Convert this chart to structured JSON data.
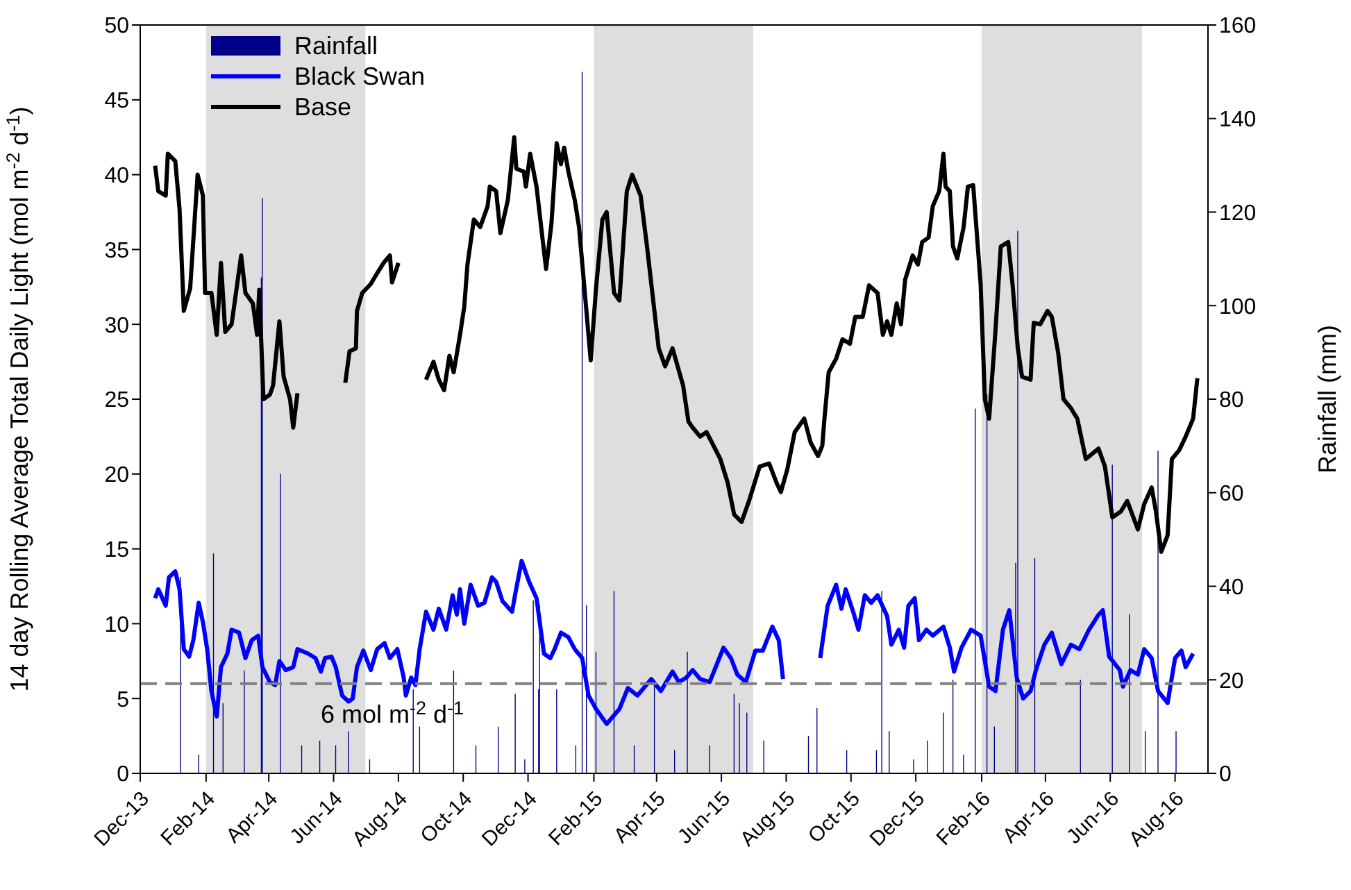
{
  "chart_data": {
    "type": "line",
    "ylabel": "14 day Rolling Average Total Daily Light (mol m$^{-2}$ d$^{-1}$)",
    "y2label": "Rainfall (mm)",
    "xlim": [
      "2013-12-01",
      "2016-09-01"
    ],
    "xticks": [
      {
        "value": "2013-12-01",
        "label": "Dec-13"
      },
      {
        "value": "2014-02-01",
        "label": "Feb-14"
      },
      {
        "value": "2014-04-01",
        "label": "Apr-14"
      },
      {
        "value": "2014-06-01",
        "label": "Jun-14"
      },
      {
        "value": "2014-08-01",
        "label": "Aug-14"
      },
      {
        "value": "2014-10-01",
        "label": "Oct-14"
      },
      {
        "value": "2014-12-01",
        "label": "Dec-14"
      },
      {
        "value": "2015-02-01",
        "label": "Feb-15"
      },
      {
        "value": "2015-04-01",
        "label": "Apr-15"
      },
      {
        "value": "2015-06-01",
        "label": "Jun-15"
      },
      {
        "value": "2015-08-01",
        "label": "Aug-15"
      },
      {
        "value": "2015-10-01",
        "label": "Oct-15"
      },
      {
        "value": "2015-12-01",
        "label": "Dec-15"
      },
      {
        "value": "2016-02-01",
        "label": "Feb-16"
      },
      {
        "value": "2016-04-01",
        "label": "Apr-16"
      },
      {
        "value": "2016-06-01",
        "label": "Jun-16"
      },
      {
        "value": "2016-08-01",
        "label": "Aug-16"
      }
    ],
    "ylim": [
      0,
      50
    ],
    "yticks": [
      0,
      5,
      10,
      15,
      20,
      25,
      30,
      35,
      40,
      45,
      50
    ],
    "y2lim": [
      0,
      160
    ],
    "y2ticks": [
      0,
      20,
      40,
      60,
      80,
      100,
      120,
      140,
      160
    ],
    "grid": false,
    "legend": "top left",
    "marker": "none",
    "series": [
      {
        "name": "Rainfall",
        "type": "bar",
        "axis": "y2",
        "color": "#00008b",
        "x": [
          "2014-01-08",
          "2014-01-25",
          "2014-02-08",
          "2014-02-17",
          "2014-03-09",
          "2014-03-25",
          "2014-03-26",
          "2014-04-12",
          "2014-05-02",
          "2014-05-19",
          "2014-06-03",
          "2014-06-15",
          "2014-07-05",
          "2014-08-15",
          "2014-08-21",
          "2014-09-22",
          "2014-10-13",
          "2014-11-03",
          "2014-11-19",
          "2014-11-28",
          "2014-12-06",
          "2014-12-11",
          "2014-12-12",
          "2014-12-28",
          "2015-01-15",
          "2015-01-21",
          "2015-01-25",
          "2015-02-03",
          "2015-02-20",
          "2015-03-11",
          "2015-03-30",
          "2015-04-18",
          "2015-04-30",
          "2015-05-21",
          "2015-06-13",
          "2015-06-18",
          "2015-06-25",
          "2015-07-11",
          "2015-08-22",
          "2015-08-30",
          "2015-09-27",
          "2015-10-25",
          "2015-10-30",
          "2015-11-06",
          "2015-11-29",
          "2015-12-12",
          "2015-12-27",
          "2016-01-05",
          "2016-01-15",
          "2016-01-26",
          "2016-02-06",
          "2016-02-13",
          "2016-03-04",
          "2016-03-06",
          "2016-03-22",
          "2016-05-04",
          "2016-06-03",
          "2016-06-19",
          "2016-07-04",
          "2016-07-16",
          "2016-08-02"
        ],
        "values": [
          42,
          4,
          47,
          15,
          22,
          106,
          123,
          64,
          6,
          7,
          6,
          9,
          3,
          18,
          10,
          22,
          6,
          10,
          17,
          3,
          37,
          18,
          36,
          18,
          6,
          150,
          36,
          26,
          39,
          6,
          19,
          5,
          26,
          6,
          17,
          15,
          13,
          7,
          8,
          14,
          5,
          5,
          39,
          9,
          3,
          7,
          13,
          20,
          4,
          78,
          81,
          10,
          45,
          116,
          46,
          20,
          66,
          34,
          9,
          69,
          9
        ]
      },
      {
        "name": "Black Swan",
        "color": "#0000ff",
        "x": [
          "2013-12-15",
          "2013-12-18",
          "2013-12-25",
          "2013-12-28",
          "2014-01-03",
          "2014-01-07",
          "2014-01-11",
          "2014-01-16",
          "2014-01-20",
          "2014-01-25",
          "2014-01-29",
          "2014-02-02",
          "2014-02-06",
          "2014-02-11",
          "2014-02-15",
          "2014-02-21",
          "2014-02-25",
          "2014-03-04",
          "2014-03-10",
          "2014-03-16",
          "2014-03-22",
          "2014-03-26",
          "2014-04-02",
          "2014-04-07",
          "2014-04-11",
          "2014-04-17",
          "2014-04-24",
          "2014-04-28",
          "2014-05-08",
          "2014-05-15",
          "2014-05-20",
          "2014-05-24",
          "2014-05-30",
          "2014-06-03",
          "2014-06-09",
          "2014-06-15",
          "2014-06-19",
          "2014-06-23",
          "2014-06-29",
          "2014-07-06",
          "2014-07-12",
          "2014-07-19",
          "2014-07-24",
          "2014-07-31",
          "2014-08-06",
          "2014-08-08",
          "2014-08-13",
          "2014-08-17",
          "2014-08-21",
          "2014-08-27",
          "2014-09-03",
          "2014-09-08",
          "2014-09-15",
          "2014-09-21",
          "2014-09-25",
          "2014-09-28",
          "2014-10-02",
          "2014-10-08",
          "2014-10-15",
          "2014-10-21",
          "2014-10-28",
          "2014-11-01",
          "2014-11-07",
          "2014-11-16",
          "2014-11-19",
          "2014-11-25",
          "2014-12-02",
          "2014-12-09",
          "2014-12-16",
          "2014-12-22",
          "2014-12-26",
          "2015-01-01",
          "2015-01-08",
          "2015-01-14",
          "2015-01-21",
          "2015-01-27",
          "2015-02-03",
          "2015-02-13",
          "2015-02-25",
          "2015-03-05",
          "2015-03-14",
          "2015-03-27",
          "2015-04-05",
          "2015-04-16",
          "2015-04-22",
          "2015-04-29",
          "2015-05-05",
          "2015-05-12",
          "2015-05-21",
          "2015-06-03",
          "2015-06-10",
          "2015-06-16",
          "2015-06-24",
          "2015-07-03",
          "2015-07-10",
          "2015-07-19",
          "2015-07-25",
          "2015-07-29",
          "2015-08-25",
          "2015-09-02",
          "2015-09-09",
          "2015-09-17",
          "2015-09-22",
          "2015-09-26",
          "2015-10-03",
          "2015-10-08",
          "2015-10-14",
          "2015-10-20",
          "2015-10-26",
          "2015-11-04",
          "2015-11-08",
          "2015-11-15",
          "2015-11-20",
          "2015-11-24",
          "2015-11-30",
          "2015-12-04",
          "2015-12-11",
          "2015-12-17",
          "2015-12-27",
          "2016-01-02",
          "2016-01-06",
          "2016-01-13",
          "2016-01-22",
          "2016-01-31",
          "2016-02-08",
          "2016-02-14",
          "2016-02-21",
          "2016-02-27",
          "2016-03-05",
          "2016-03-11",
          "2016-03-18",
          "2016-03-23",
          "2016-03-31",
          "2016-04-07",
          "2016-04-16",
          "2016-04-25",
          "2016-05-03",
          "2016-05-12",
          "2016-05-21",
          "2016-05-25",
          "2016-05-31",
          "2016-06-10",
          "2016-06-13",
          "2016-06-20",
          "2016-06-27",
          "2016-07-03",
          "2016-07-10",
          "2016-07-16",
          "2016-07-25",
          "2016-08-01",
          "2016-08-07",
          "2016-08-11",
          "2016-08-18"
        ],
        "values": [
          11.7,
          12.3,
          11.2,
          13.1,
          13.5,
          12.3,
          8.3,
          7.8,
          8.9,
          11.4,
          10.1,
          8.3,
          5.5,
          3.8,
          7.1,
          8.0,
          9.6,
          9.4,
          7.7,
          8.9,
          9.2,
          7.1,
          6.1,
          5.9,
          7.5,
          6.9,
          7.1,
          8.3,
          8.0,
          7.7,
          6.8,
          7.7,
          7.8,
          7.1,
          5.2,
          4.8,
          5.0,
          7.1,
          8.2,
          6.9,
          8.3,
          8.7,
          7.7,
          8.3,
          6.4,
          5.2,
          6.4,
          5.9,
          8.3,
          10.8,
          9.6,
          11.0,
          9.6,
          11.9,
          10.6,
          12.3,
          10.0,
          12.6,
          11.2,
          11.4,
          13.1,
          12.8,
          11.5,
          10.8,
          12.0,
          14.2,
          12.8,
          11.7,
          8.0,
          7.7,
          8.3,
          9.4,
          9.1,
          8.3,
          7.7,
          5.2,
          4.3,
          3.3,
          4.3,
          5.7,
          5.2,
          6.3,
          5.5,
          6.8,
          6.1,
          6.4,
          6.9,
          6.3,
          6.1,
          8.4,
          7.7,
          6.6,
          6.1,
          8.2,
          8.2,
          9.8,
          8.9,
          6.3,
          null,
          7.7,
          11.2,
          12.6,
          11.0,
          12.3,
          10.8,
          9.6,
          11.9,
          11.4,
          11.9,
          10.5,
          8.6,
          9.6,
          8.4,
          11.2,
          11.7,
          8.9,
          9.6,
          9.2,
          9.8,
          8.4,
          6.8,
          8.4,
          9.6,
          9.2,
          5.8,
          5.5,
          9.6,
          10.9,
          6.4,
          5.0,
          5.5,
          6.9,
          8.6,
          9.4,
          7.3,
          8.6,
          8.3,
          9.6,
          10.6,
          10.9,
          7.8,
          6.9,
          5.8,
          6.9,
          6.6,
          8.3,
          7.7,
          5.5,
          4.7,
          7.7,
          8.2,
          7.1,
          8.0
        ]
      },
      {
        "name": "Base",
        "color": "#000000",
        "x": [
          "2013-12-15",
          "2013-12-18",
          "2013-12-25",
          "2013-12-27",
          "2014-01-03",
          "2014-01-07",
          "2014-01-11",
          "2014-01-17",
          "2014-01-24",
          "2014-01-29",
          "2014-01-31",
          "2014-02-06",
          "2014-02-11",
          "2014-02-15",
          "2014-02-19",
          "2014-02-25",
          "2014-03-06",
          "2014-03-10",
          "2014-03-17",
          "2014-03-21",
          "2014-03-23",
          "2014-03-27",
          "2014-04-02",
          "2014-04-05",
          "2014-04-11",
          "2014-04-15",
          "2014-04-21",
          "2014-04-24",
          "2014-04-28",
          "2014-05-20",
          "2014-06-12",
          "2014-06-16",
          "2014-06-22",
          "2014-06-23",
          "2014-06-28",
          "2014-07-02",
          "2014-07-06",
          "2014-07-11",
          "2014-07-18",
          "2014-07-24",
          "2014-07-26",
          "2014-08-01",
          "2014-08-14",
          "2014-08-27",
          "2014-09-03",
          "2014-09-08",
          "2014-09-13",
          "2014-09-18",
          "2014-09-22",
          "2014-09-28",
          "2014-10-02",
          "2014-10-05",
          "2014-10-11",
          "2014-10-17",
          "2014-10-24",
          "2014-10-26",
          "2014-11-01",
          "2014-11-05",
          "2014-11-12",
          "2014-11-18",
          "2014-11-20",
          "2014-11-27",
          "2014-11-29",
          "2014-12-03",
          "2014-12-09",
          "2014-12-15",
          "2014-12-18",
          "2014-12-23",
          "2014-12-28",
          "2015-01-01",
          "2015-01-04",
          "2015-01-08",
          "2015-01-14",
          "2015-01-18",
          "2015-01-22",
          "2015-01-29",
          "2015-02-03",
          "2015-02-09",
          "2015-02-13",
          "2015-02-20",
          "2015-02-25",
          "2015-03-04",
          "2015-03-09",
          "2015-03-17",
          "2015-03-23",
          "2015-04-03",
          "2015-04-09",
          "2015-04-16",
          "2015-04-26",
          "2015-05-01",
          "2015-05-05",
          "2015-05-12",
          "2015-05-18",
          "2015-05-31",
          "2015-06-07",
          "2015-06-13",
          "2015-06-20",
          "2015-06-27",
          "2015-07-07",
          "2015-07-16",
          "2015-07-23",
          "2015-07-27",
          "2015-08-02",
          "2015-08-09",
          "2015-08-18",
          "2015-08-24",
          "2015-08-31",
          "2015-09-04",
          "2015-09-06",
          "2015-09-10",
          "2015-09-17",
          "2015-09-23",
          "2015-09-30",
          "2015-10-05",
          "2015-10-12",
          "2015-10-18",
          "2015-10-26",
          "2015-10-31",
          "2015-11-04",
          "2015-11-08",
          "2015-11-13",
          "2015-11-17",
          "2015-11-21",
          "2015-11-28",
          "2015-12-03",
          "2015-12-07",
          "2015-12-13",
          "2015-12-17",
          "2015-12-23",
          "2015-12-27",
          "2015-12-29",
          "2016-01-02",
          "2016-01-05",
          "2016-01-09",
          "2016-01-15",
          "2016-01-19",
          "2016-01-24",
          "2016-01-31",
          "2016-02-04",
          "2016-02-08",
          "2016-02-14",
          "2016-02-19",
          "2016-02-26",
          "2016-03-01",
          "2016-03-06",
          "2016-03-10",
          "2016-03-18",
          "2016-03-21",
          "2016-03-27",
          "2016-04-03",
          "2016-04-07",
          "2016-04-13",
          "2016-04-18",
          "2016-04-25",
          "2016-05-01",
          "2016-05-09",
          "2016-05-21",
          "2016-05-27",
          "2016-06-03",
          "2016-06-11",
          "2016-06-17",
          "2016-06-27",
          "2016-07-03",
          "2016-07-10",
          "2016-07-14",
          "2016-07-19",
          "2016-07-25",
          "2016-07-29",
          "2016-08-05",
          "2016-08-11",
          "2016-08-18",
          "2016-08-22"
        ],
        "values": [
          40.6,
          38.9,
          38.6,
          41.4,
          40.9,
          37.7,
          30.9,
          32.4,
          40.0,
          38.6,
          32.1,
          32.1,
          29.3,
          34.1,
          29.5,
          30.0,
          34.6,
          32.1,
          31.4,
          29.3,
          32.3,
          25.0,
          25.3,
          25.9,
          30.2,
          26.5,
          25.0,
          23.1,
          25.4,
          null,
          26.1,
          28.2,
          28.4,
          30.9,
          32.1,
          32.4,
          32.7,
          33.3,
          34.1,
          34.6,
          32.8,
          34.1,
          null,
          26.3,
          27.5,
          26.3,
          25.6,
          27.9,
          26.8,
          29.3,
          31.2,
          34.0,
          37.0,
          36.5,
          37.9,
          39.2,
          38.9,
          36.1,
          38.3,
          42.5,
          40.4,
          40.2,
          39.2,
          41.4,
          39.2,
          35.5,
          33.7,
          36.7,
          42.1,
          40.7,
          41.8,
          40.2,
          38.3,
          36.5,
          33.3,
          27.6,
          32.4,
          37.0,
          37.5,
          32.1,
          31.6,
          38.9,
          40.0,
          38.6,
          35.2,
          28.4,
          27.2,
          28.4,
          25.9,
          23.5,
          23.1,
          22.5,
          22.8,
          21.0,
          19.4,
          17.3,
          16.8,
          18.2,
          20.5,
          20.7,
          19.4,
          18.8,
          20.3,
          22.8,
          23.7,
          22.1,
          21.2,
          21.9,
          23.7,
          26.8,
          27.7,
          29.0,
          28.7,
          30.5,
          30.5,
          32.6,
          32.1,
          29.3,
          30.2,
          29.3,
          31.4,
          30.0,
          33.0,
          34.6,
          34.0,
          35.5,
          35.8,
          37.9,
          38.9,
          41.4,
          39.2,
          38.9,
          35.2,
          34.4,
          36.5,
          39.2,
          39.3,
          32.7,
          25.0,
          23.7,
          29.6,
          35.2,
          35.5,
          32.7,
          28.4,
          26.5,
          26.3,
          30.1,
          30.0,
          30.9,
          30.5,
          28.1,
          25.0,
          24.4,
          23.7,
          21.0,
          21.7,
          20.5,
          17.1,
          17.5,
          18.2,
          16.3,
          18.0,
          19.1,
          17.5,
          14.8,
          15.9,
          21.0,
          21.6,
          22.5,
          23.7,
          26.4
        ]
      }
    ],
    "ref_lines": [
      {
        "axis": "y",
        "value": 6,
        "label": "6 mol m$^{-2}$ d$^{-1}$",
        "color": "#808080",
        "line_style": "dashed"
      }
    ],
    "bands": [
      {
        "axis": "x",
        "from": "2014-02-01",
        "to": "2014-07-01",
        "color": "#dedede"
      },
      {
        "axis": "x",
        "from": "2015-02-01",
        "to": "2015-07-01",
        "color": "#dedede"
      },
      {
        "axis": "x",
        "from": "2016-02-01",
        "to": "2016-07-01",
        "color": "#dedede"
      }
    ]
  }
}
